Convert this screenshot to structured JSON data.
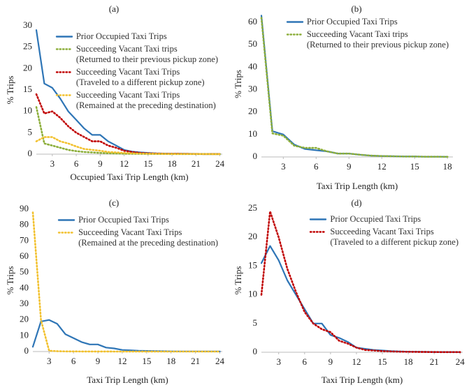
{
  "chart_data": [
    {
      "type": "line",
      "title": "(a)",
      "x_label": "Occupied Taxi Trip Length (km)",
      "y_label": "% Trips",
      "x": [
        1,
        2,
        3,
        4,
        5,
        6,
        7,
        8,
        9,
        10,
        11,
        12,
        13,
        14,
        15,
        16,
        17,
        18,
        19,
        20,
        21,
        22,
        23,
        24
      ],
      "series": [
        {
          "name": "Prior Occupied Taxi Trips",
          "color": "#2e75b6",
          "dash": "solid",
          "values": [
            29,
            16.5,
            15.5,
            13,
            10,
            8,
            6,
            4.5,
            4.5,
            3,
            2,
            1,
            0.6,
            0.4,
            0.3,
            0.2,
            0.15,
            0.1,
            0.1,
            0.08,
            0.06,
            0.05,
            0.05,
            0.05
          ]
        },
        {
          "name": "Succeeding Vacant Taxi trips\n(Returned to their previous pickup zone)",
          "color": "#8cae3a",
          "dash": "dotted",
          "values": [
            11,
            2.5,
            2,
            1.5,
            1,
            0.7,
            0.5,
            0.4,
            0.3,
            0.2,
            0.15,
            0.1,
            0.1,
            0.08,
            0.06,
            0.05,
            0.05,
            0.04,
            0.04,
            0.03,
            0.03,
            0.02,
            0.02,
            0.02
          ]
        },
        {
          "name": "Succeeding Vacant Taxi Trips\n(Traveled to a different pickup zone)",
          "color": "#c00000",
          "dash": "dotted",
          "values": [
            14,
            9.5,
            10,
            8.5,
            6.5,
            5,
            4,
            3,
            3,
            2,
            1.5,
            0.8,
            0.5,
            0.3,
            0.2,
            0.15,
            0.1,
            0.1,
            0.08,
            0.06,
            0.05,
            0.04,
            0.04,
            0.03
          ]
        },
        {
          "name": "Succeeding Vacant Taxi Trips\n(Remained at the preceding destination)",
          "color": "#f2c12e",
          "dash": "dotted",
          "values": [
            3,
            4,
            4,
            3,
            2.5,
            1.8,
            1.2,
            1,
            0.8,
            0.5,
            0.4,
            0.3,
            0.2,
            0.15,
            0.1,
            0.08,
            0.06,
            0.05,
            0.04,
            0.04,
            0.03,
            0.03,
            0.02,
            0.02
          ]
        }
      ],
      "xlim": [
        1,
        24.3
      ],
      "ylim": [
        0,
        30
      ],
      "xticks": [
        3,
        6,
        9,
        12,
        15,
        18,
        21,
        24
      ],
      "yticks": [
        0,
        5,
        10,
        15,
        20,
        25,
        30
      ],
      "legend": "upper right"
    },
    {
      "type": "line",
      "title": "(b)",
      "x_label": "Taxi Trip Length (km)",
      "y_label": "% Trips",
      "x": [
        1,
        2,
        3,
        4,
        5,
        6,
        7,
        8,
        9,
        10,
        11,
        12,
        13,
        14,
        15,
        16,
        17,
        18
      ],
      "series": [
        {
          "name": "Prior Occupied Taxi Trips",
          "color": "#2e75b6",
          "dash": "solid",
          "values": [
            63,
            11.5,
            10,
            5.5,
            3.5,
            3,
            2.5,
            1.5,
            1.5,
            1,
            0.6,
            0.4,
            0.3,
            0.2,
            0.2,
            0.1,
            0.1,
            0.05
          ]
        },
        {
          "name": "Succeeding Vacant Taxi trips\n(Returned to their previous pickup zone)",
          "color": "#8cae3a",
          "dash": "dotted",
          "values": [
            62,
            10.5,
            9.5,
            5,
            4,
            4,
            2.5,
            1.5,
            1.5,
            1,
            0.6,
            0.4,
            0.3,
            0.2,
            0.2,
            0.1,
            0.1,
            0.05
          ]
        }
      ],
      "xlim": [
        1,
        18.5
      ],
      "ylim": [
        0,
        65
      ],
      "xticks": [
        3,
        6,
        9,
        12,
        15,
        18
      ],
      "yticks": [
        0,
        10,
        20,
        30,
        40,
        50,
        60
      ],
      "legend": "upper right"
    },
    {
      "type": "line",
      "title": "(c)",
      "x_label": "Taxi Trip Length (km)",
      "y_label": "% Trips",
      "x": [
        1,
        2,
        3,
        4,
        5,
        6,
        7,
        8,
        9,
        10,
        11,
        12,
        13,
        14,
        15,
        16,
        17,
        18,
        19,
        20,
        21,
        22,
        23,
        24
      ],
      "series": [
        {
          "name": "Prior Occupied Taxi Trips",
          "color": "#2e75b6",
          "dash": "solid",
          "values": [
            3,
            19,
            20,
            17.5,
            11,
            8.5,
            6,
            4.5,
            4.5,
            2.5,
            2,
            1,
            0.8,
            0.5,
            0.4,
            0.3,
            0.2,
            0.15,
            0.1,
            0.1,
            0.08,
            0.06,
            0.05,
            0.05
          ]
        },
        {
          "name": "Succeeding Vacant Taxi Trips\n(Remained at the preceding destination)",
          "color": "#f2c12e",
          "dash": "dotted",
          "values": [
            88,
            20,
            0.5,
            0.2,
            0.1,
            0.1,
            0.05,
            0.05,
            0.04,
            0.03,
            0.02,
            0.02,
            0.02,
            0.01,
            0.01,
            0.01,
            0.01,
            0.01,
            0,
            0,
            0,
            0,
            0,
            0
          ]
        }
      ],
      "xlim": [
        1,
        24.3
      ],
      "ylim": [
        0,
        90
      ],
      "xticks": [
        3,
        6,
        9,
        12,
        15,
        18,
        21,
        24
      ],
      "yticks": [
        0,
        10,
        20,
        30,
        40,
        50,
        60,
        70,
        80,
        90
      ],
      "legend": "upper right"
    },
    {
      "type": "line",
      "title": "(d)",
      "x_label": "Taxi Trip Length (km)",
      "y_label": "% Trips",
      "x": [
        1,
        2,
        3,
        4,
        5,
        6,
        7,
        8,
        9,
        10,
        11,
        12,
        13,
        14,
        15,
        16,
        17,
        18,
        19,
        20,
        21,
        22,
        23,
        24
      ],
      "series": [
        {
          "name": "Prior Occupied Taxi Trips",
          "color": "#2e75b6",
          "dash": "solid",
          "values": [
            15.5,
            18.5,
            16,
            12.5,
            10,
            7.5,
            5,
            5,
            3,
            2.5,
            1.8,
            0.8,
            0.6,
            0.4,
            0.3,
            0.2,
            0.15,
            0.1,
            0.08,
            0.06,
            0.05,
            0.04,
            0.04,
            0.03
          ]
        },
        {
          "name": "Succeeding Vacant Taxi Trips\n(Traveled to a different pickup zone)",
          "color": "#c00000",
          "dash": "dotted",
          "values": [
            10,
            24.5,
            20,
            14.5,
            10.5,
            7,
            5,
            4,
            3.5,
            2,
            1.5,
            0.8,
            0.4,
            0.3,
            0.2,
            0.15,
            0.1,
            0.08,
            0.06,
            0.05,
            0.04,
            0.03,
            0.03,
            0.02
          ]
        }
      ],
      "xlim": [
        1,
        24.3
      ],
      "ylim": [
        0,
        25
      ],
      "xticks": [
        3,
        6,
        9,
        12,
        15,
        18,
        21,
        24
      ],
      "yticks": [
        0,
        5,
        10,
        15,
        20,
        25
      ],
      "legend": "upper right"
    }
  ]
}
